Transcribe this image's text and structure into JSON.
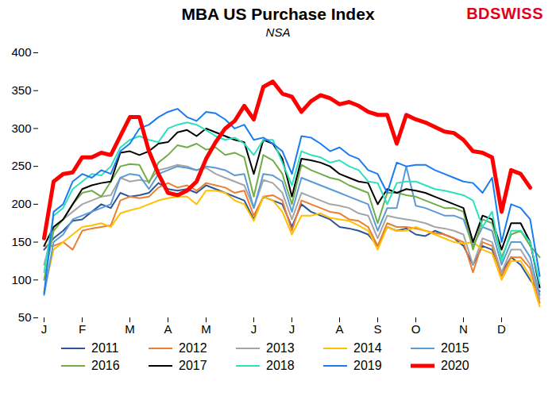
{
  "chart_data": {
    "type": "line",
    "title": "MBA US Purchase Index",
    "subtitle": "NSA",
    "logo": "BDSWISS",
    "categories": [
      "J",
      null,
      null,
      null,
      "F",
      null,
      null,
      null,
      null,
      "M",
      null,
      null,
      null,
      "A",
      null,
      null,
      null,
      "M",
      null,
      null,
      null,
      null,
      "J",
      null,
      null,
      null,
      "J",
      null,
      null,
      null,
      null,
      "A",
      null,
      null,
      null,
      "S",
      null,
      null,
      null,
      "O",
      null,
      null,
      null,
      null,
      "N",
      null,
      null,
      null,
      "D",
      null,
      null,
      null,
      null
    ],
    "ylim": [
      50,
      400
    ],
    "yticks": [
      50,
      100,
      150,
      200,
      250,
      300,
      350,
      400
    ],
    "grid": false,
    "legend": "bottom",
    "series": [
      {
        "name": "2011",
        "color": "#2f5597",
        "line_style": "solid",
        "values": [
          140,
          155,
          165,
          178,
          180,
          190,
          200,
          195,
          215,
          210,
          212,
          215,
          228,
          220,
          218,
          220,
          215,
          225,
          220,
          215,
          210,
          205,
          180,
          210,
          205,
          200,
          170,
          200,
          190,
          185,
          180,
          170,
          168,
          165,
          160,
          145,
          170,
          165,
          168,
          160,
          158,
          165,
          160,
          155,
          145,
          120,
          145,
          140,
          110,
          130,
          120,
          100,
          85
        ]
      },
      {
        "name": "2012",
        "color": "#ed7d31",
        "line_style": "solid",
        "values": [
          145,
          145,
          150,
          140,
          165,
          168,
          170,
          172,
          205,
          210,
          208,
          210,
          222,
          228,
          222,
          225,
          218,
          228,
          225,
          222,
          215,
          218,
          185,
          210,
          212,
          205,
          165,
          205,
          200,
          195,
          190,
          188,
          180,
          178,
          170,
          145,
          175,
          170,
          170,
          168,
          165,
          162,
          160,
          155,
          150,
          110,
          150,
          145,
          105,
          130,
          130,
          115,
          70
        ]
      },
      {
        "name": "2013",
        "color": "#a5a5a5",
        "line_style": "solid",
        "values": [
          120,
          170,
          180,
          190,
          200,
          205,
          210,
          212,
          235,
          230,
          232,
          230,
          245,
          248,
          252,
          250,
          245,
          248,
          240,
          235,
          230,
          225,
          195,
          232,
          228,
          215,
          180,
          215,
          210,
          205,
          200,
          198,
          195,
          188,
          185,
          155,
          185,
          182,
          180,
          178,
          175,
          170,
          168,
          165,
          160,
          120,
          155,
          150,
          110,
          140,
          140,
          120,
          75
        ]
      },
      {
        "name": "2014",
        "color": "#ffc000",
        "line_style": "solid",
        "values": [
          85,
          140,
          150,
          160,
          170,
          172,
          175,
          170,
          188,
          192,
          195,
          200,
          205,
          208,
          210,
          210,
          200,
          218,
          218,
          215,
          205,
          200,
          178,
          210,
          205,
          190,
          160,
          185,
          185,
          188,
          182,
          180,
          178,
          172,
          165,
          140,
          170,
          165,
          165,
          170,
          165,
          160,
          155,
          150,
          148,
          150,
          140,
          135,
          100,
          125,
          125,
          105,
          65
        ]
      },
      {
        "name": "2015",
        "color": "#5b9bd5",
        "line_style": "solid",
        "values": [
          80,
          150,
          160,
          180,
          185,
          190,
          195,
          200,
          235,
          240,
          238,
          220,
          240,
          245,
          250,
          248,
          245,
          250,
          248,
          245,
          238,
          240,
          195,
          240,
          238,
          230,
          190,
          235,
          230,
          225,
          220,
          215,
          210,
          205,
          200,
          165,
          195,
          195,
          250,
          198,
          195,
          190,
          185,
          185,
          180,
          145,
          170,
          165,
          120,
          150,
          150,
          130,
          80
        ]
      },
      {
        "name": "2016",
        "color": "#70ad47",
        "line_style": "solid",
        "values": [
          100,
          165,
          180,
          200,
          215,
          218,
          210,
          230,
          250,
          253,
          252,
          228,
          255,
          265,
          278,
          275,
          280,
          272,
          275,
          265,
          268,
          262,
          210,
          265,
          258,
          240,
          200,
          252,
          245,
          240,
          235,
          232,
          225,
          220,
          215,
          175,
          215,
          215,
          212,
          210,
          205,
          200,
          195,
          195,
          190,
          140,
          180,
          175,
          130,
          160,
          165,
          145,
          130
        ]
      },
      {
        "name": "2017",
        "color": "#000000",
        "line_style": "solid",
        "values": [
          145,
          170,
          180,
          200,
          220,
          225,
          228,
          230,
          268,
          270,
          265,
          270,
          280,
          282,
          295,
          298,
          290,
          300,
          295,
          290,
          285,
          282,
          240,
          285,
          280,
          260,
          210,
          260,
          258,
          255,
          250,
          240,
          235,
          230,
          228,
          200,
          220,
          215,
          220,
          218,
          215,
          210,
          205,
          200,
          195,
          150,
          185,
          180,
          140,
          175,
          175,
          150,
          90
        ]
      },
      {
        "name": "2018",
        "color": "#2ee0bf",
        "line_style": "solid",
        "values": [
          110,
          185,
          195,
          220,
          230,
          240,
          238,
          250,
          275,
          285,
          290,
          285,
          282,
          300,
          305,
          308,
          305,
          298,
          290,
          285,
          288,
          280,
          265,
          285,
          285,
          255,
          225,
          270,
          265,
          262,
          255,
          258,
          250,
          245,
          230,
          228,
          200,
          228,
          230,
          230,
          225,
          220,
          218,
          215,
          212,
          205,
          170,
          190,
          125,
          165,
          165,
          150,
          95
        ]
      },
      {
        "name": "2019",
        "color": "#1a7cf0",
        "line_style": "solid",
        "values": [
          82,
          190,
          200,
          230,
          240,
          235,
          245,
          240,
          270,
          280,
          300,
          305,
          315,
          322,
          326,
          315,
          310,
          322,
          320,
          312,
          300,
          305,
          285,
          288,
          280,
          270,
          240,
          290,
          288,
          280,
          270,
          275,
          265,
          260,
          245,
          240,
          215,
          255,
          250,
          252,
          252,
          245,
          240,
          235,
          230,
          228,
          215,
          235,
          150,
          200,
          195,
          180,
          105
        ]
      },
      {
        "name": "2020",
        "color": "#ff0000",
        "line_style": "bold",
        "values": [
          155,
          230,
          240,
          242,
          262,
          262,
          268,
          265,
          290,
          315,
          315,
          270,
          240,
          215,
          212,
          218,
          230,
          260,
          282,
          300,
          310,
          330,
          312,
          355,
          362,
          346,
          342,
          322,
          336,
          344,
          340,
          332,
          335,
          330,
          322,
          318,
          318,
          280,
          318,
          312,
          308,
          302,
          296,
          294,
          285,
          270,
          268,
          262,
          190,
          245,
          240,
          222,
          null
        ]
      }
    ]
  }
}
